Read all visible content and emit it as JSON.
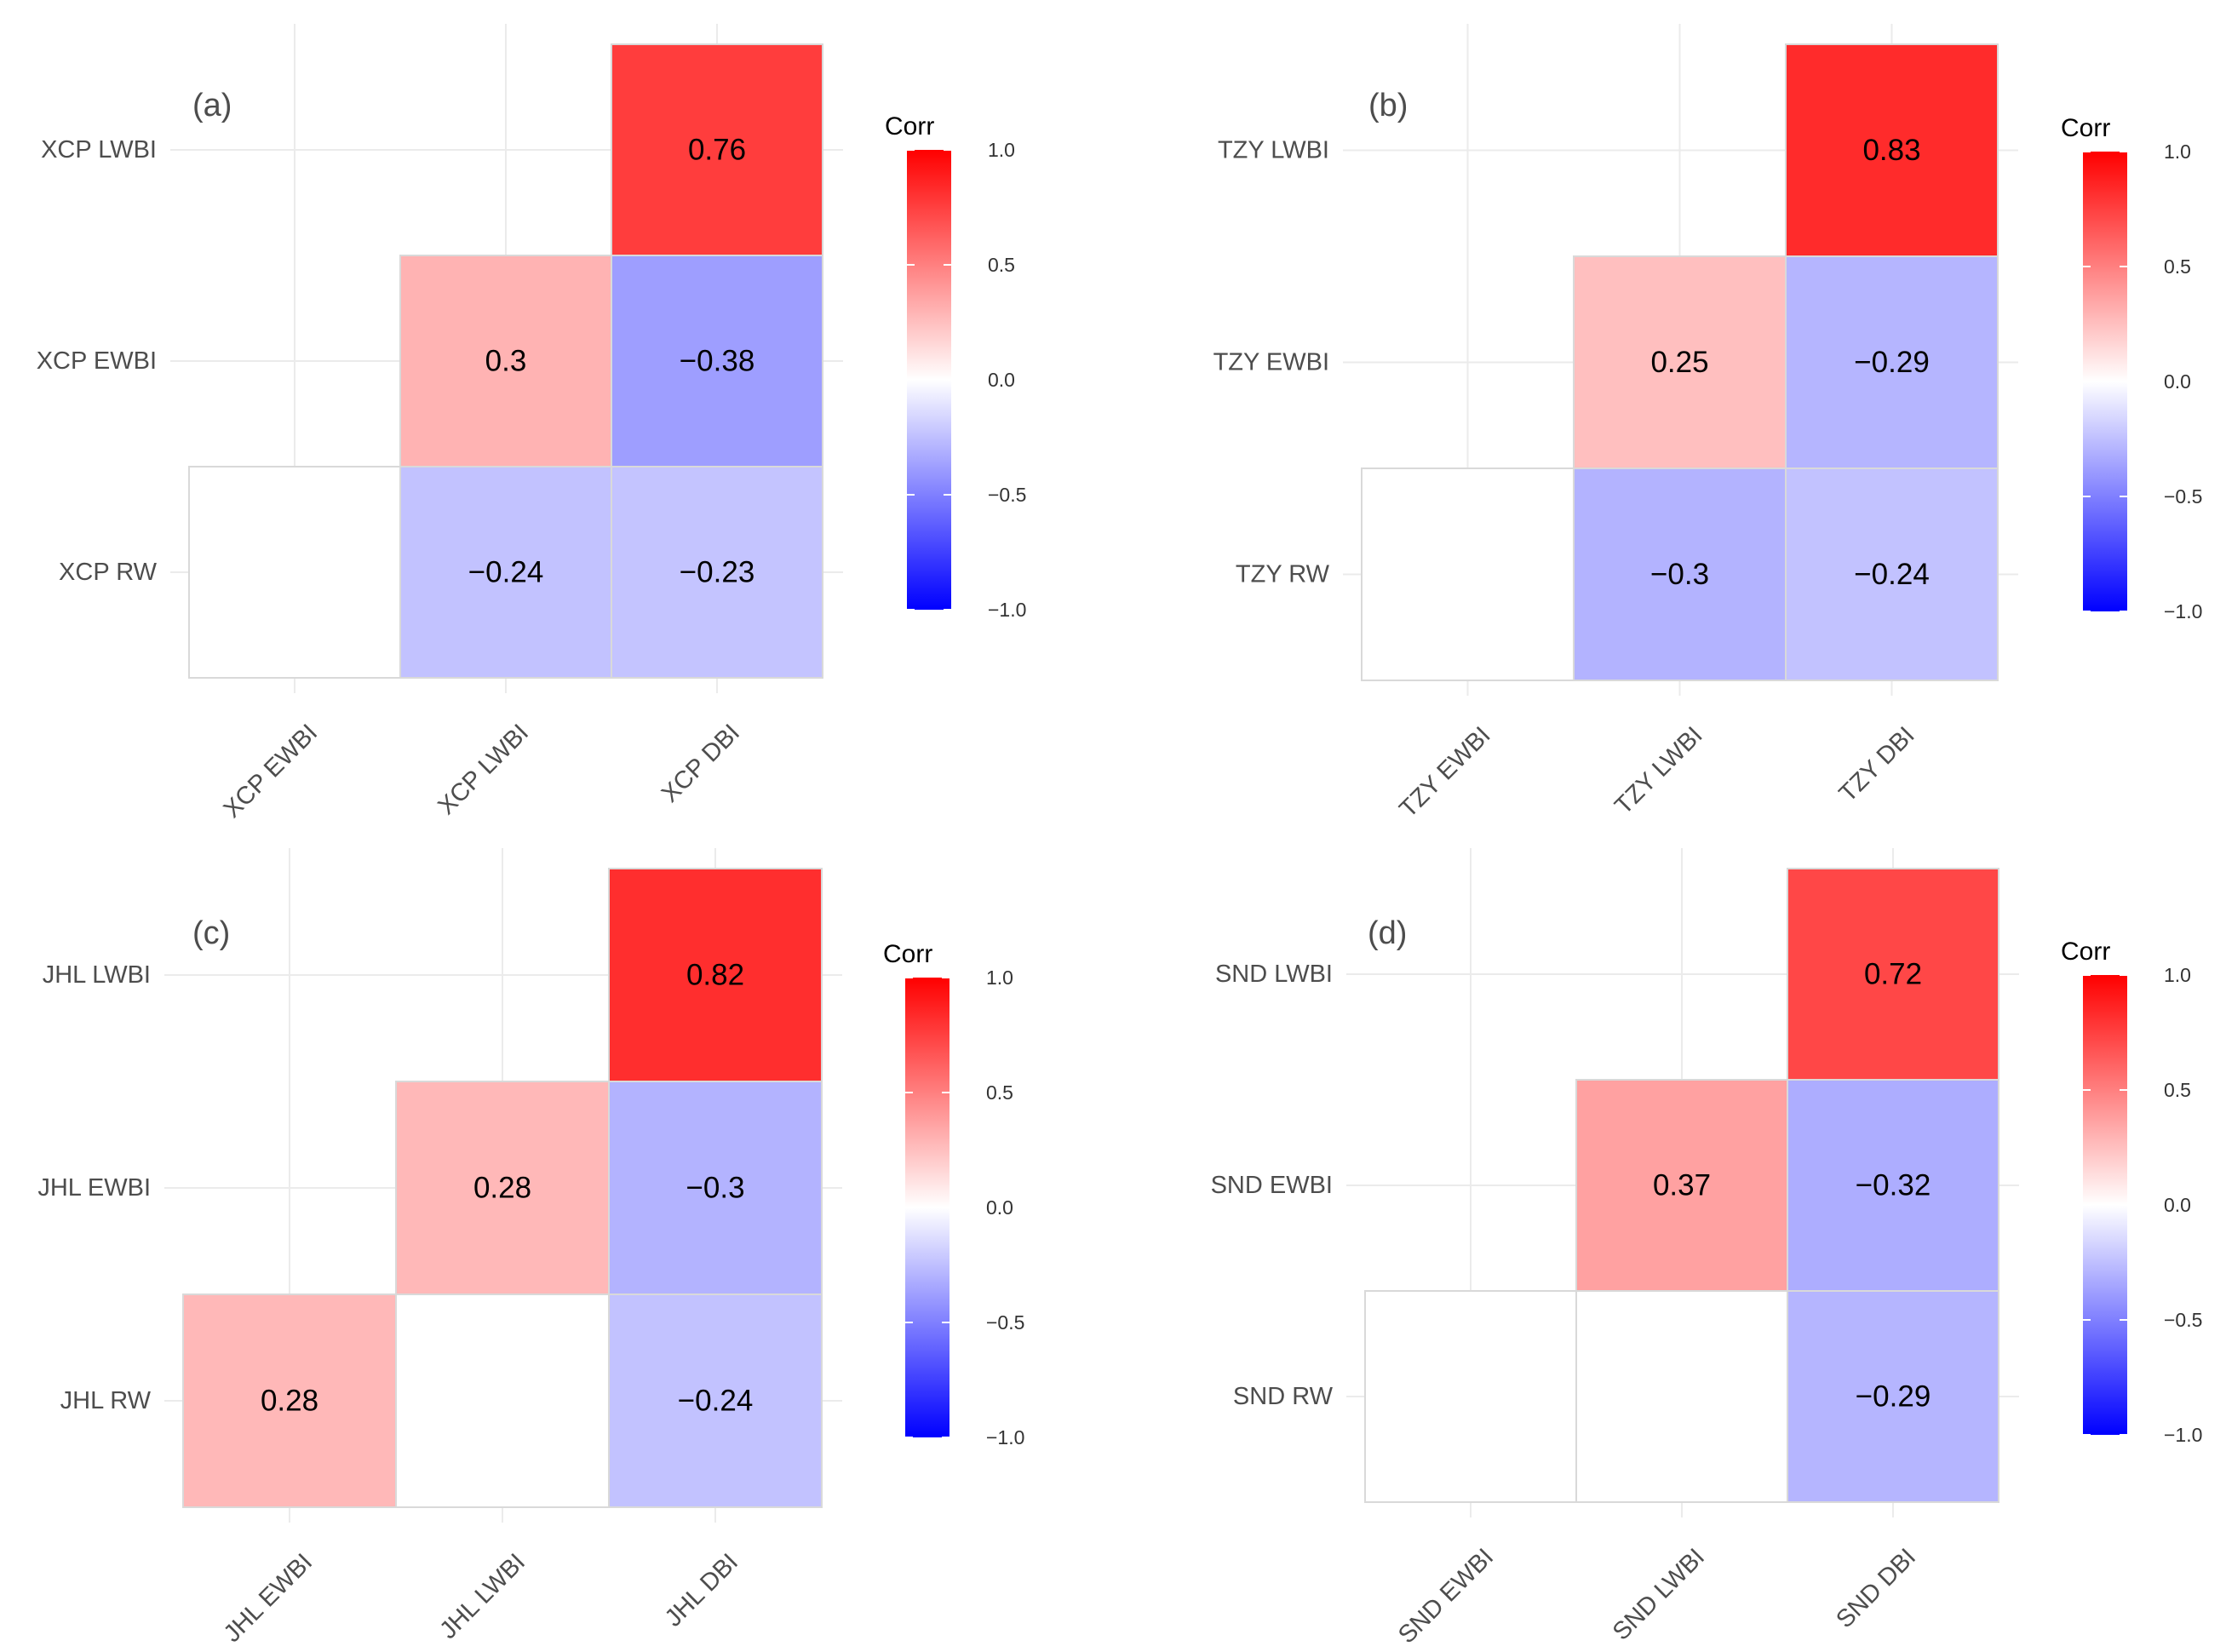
{
  "colors": {
    "low": "#0000FF",
    "mid": "#FFFFFF",
    "high": "#FF0000"
  },
  "chart_data": [
    {
      "type": "heatmap",
      "panel_label": "(a)",
      "legend_title": "Corr",
      "legend_ticks": [
        "1.0",
        "0.5",
        "0.0",
        "−0.5",
        "−1.0"
      ],
      "scale_limits": [
        -1,
        1
      ],
      "x_categories": [
        "XCP EWBI",
        "XCP LWBI",
        "XCP DBI"
      ],
      "y_categories": [
        "XCP LWBI",
        "XCP EWBI",
        "XCP RW"
      ],
      "cells": [
        {
          "x": "XCP DBI",
          "y": "XCP LWBI",
          "value": 0.76,
          "label": "0.76"
        },
        {
          "x": "XCP LWBI",
          "y": "XCP EWBI",
          "value": 0.3,
          "label": "0.3"
        },
        {
          "x": "XCP DBI",
          "y": "XCP EWBI",
          "value": -0.38,
          "label": "−0.38"
        },
        {
          "x": "XCP EWBI",
          "y": "XCP RW",
          "value": 0,
          "label": ""
        },
        {
          "x": "XCP LWBI",
          "y": "XCP RW",
          "value": -0.24,
          "label": "−0.24"
        },
        {
          "x": "XCP DBI",
          "y": "XCP RW",
          "value": -0.23,
          "label": "−0.23"
        }
      ]
    },
    {
      "type": "heatmap",
      "panel_label": "(b)",
      "legend_title": "Corr",
      "legend_ticks": [
        "1.0",
        "0.5",
        "0.0",
        "−0.5",
        "−1.0"
      ],
      "scale_limits": [
        -1,
        1
      ],
      "x_categories": [
        "TZY EWBI",
        "TZY LWBI",
        "TZY DBI"
      ],
      "y_categories": [
        "TZY LWBI",
        "TZY EWBI",
        "TZY RW"
      ],
      "cells": [
        {
          "x": "TZY DBI",
          "y": "TZY LWBI",
          "value": 0.83,
          "label": "0.83"
        },
        {
          "x": "TZY LWBI",
          "y": "TZY EWBI",
          "value": 0.25,
          "label": "0.25"
        },
        {
          "x": "TZY DBI",
          "y": "TZY EWBI",
          "value": -0.29,
          "label": "−0.29"
        },
        {
          "x": "TZY EWBI",
          "y": "TZY RW",
          "value": 0,
          "label": ""
        },
        {
          "x": "TZY LWBI",
          "y": "TZY RW",
          "value": -0.3,
          "label": "−0.3"
        },
        {
          "x": "TZY DBI",
          "y": "TZY RW",
          "value": -0.24,
          "label": "−0.24"
        }
      ]
    },
    {
      "type": "heatmap",
      "panel_label": "(c)",
      "legend_title": "Corr",
      "legend_ticks": [
        "1.0",
        "0.5",
        "0.0",
        "−0.5",
        "−1.0"
      ],
      "scale_limits": [
        -1,
        1
      ],
      "x_categories": [
        "JHL EWBI",
        "JHL LWBI",
        "JHL DBI"
      ],
      "y_categories": [
        "JHL LWBI",
        "JHL EWBI",
        "JHL RW"
      ],
      "cells": [
        {
          "x": "JHL DBI",
          "y": "JHL LWBI",
          "value": 0.82,
          "label": "0.82"
        },
        {
          "x": "JHL LWBI",
          "y": "JHL EWBI",
          "value": 0.28,
          "label": "0.28"
        },
        {
          "x": "JHL DBI",
          "y": "JHL EWBI",
          "value": -0.3,
          "label": "−0.3"
        },
        {
          "x": "JHL EWBI",
          "y": "JHL RW",
          "value": 0.28,
          "label": "0.28"
        },
        {
          "x": "JHL LWBI",
          "y": "JHL RW",
          "value": 0,
          "label": ""
        },
        {
          "x": "JHL DBI",
          "y": "JHL RW",
          "value": -0.24,
          "label": "−0.24"
        }
      ]
    },
    {
      "type": "heatmap",
      "panel_label": "(d)",
      "legend_title": "Corr",
      "legend_ticks": [
        "1.0",
        "0.5",
        "0.0",
        "−0.5",
        "−1.0"
      ],
      "scale_limits": [
        -1,
        1
      ],
      "x_categories": [
        "SND EWBI",
        "SND LWBI",
        "SND DBI"
      ],
      "y_categories": [
        "SND LWBI",
        "SND EWBI",
        "SND RW"
      ],
      "cells": [
        {
          "x": "SND DBI",
          "y": "SND LWBI",
          "value": 0.72,
          "label": "0.72"
        },
        {
          "x": "SND LWBI",
          "y": "SND EWBI",
          "value": 0.37,
          "label": "0.37"
        },
        {
          "x": "SND DBI",
          "y": "SND EWBI",
          "value": -0.32,
          "label": "−0.32"
        },
        {
          "x": "SND EWBI",
          "y": "SND RW",
          "value": 0,
          "label": ""
        },
        {
          "x": "SND LWBI",
          "y": "SND RW",
          "value": 0,
          "label": ""
        },
        {
          "x": "SND DBI",
          "y": "SND RW",
          "value": -0.29,
          "label": "−0.29"
        }
      ]
    }
  ]
}
